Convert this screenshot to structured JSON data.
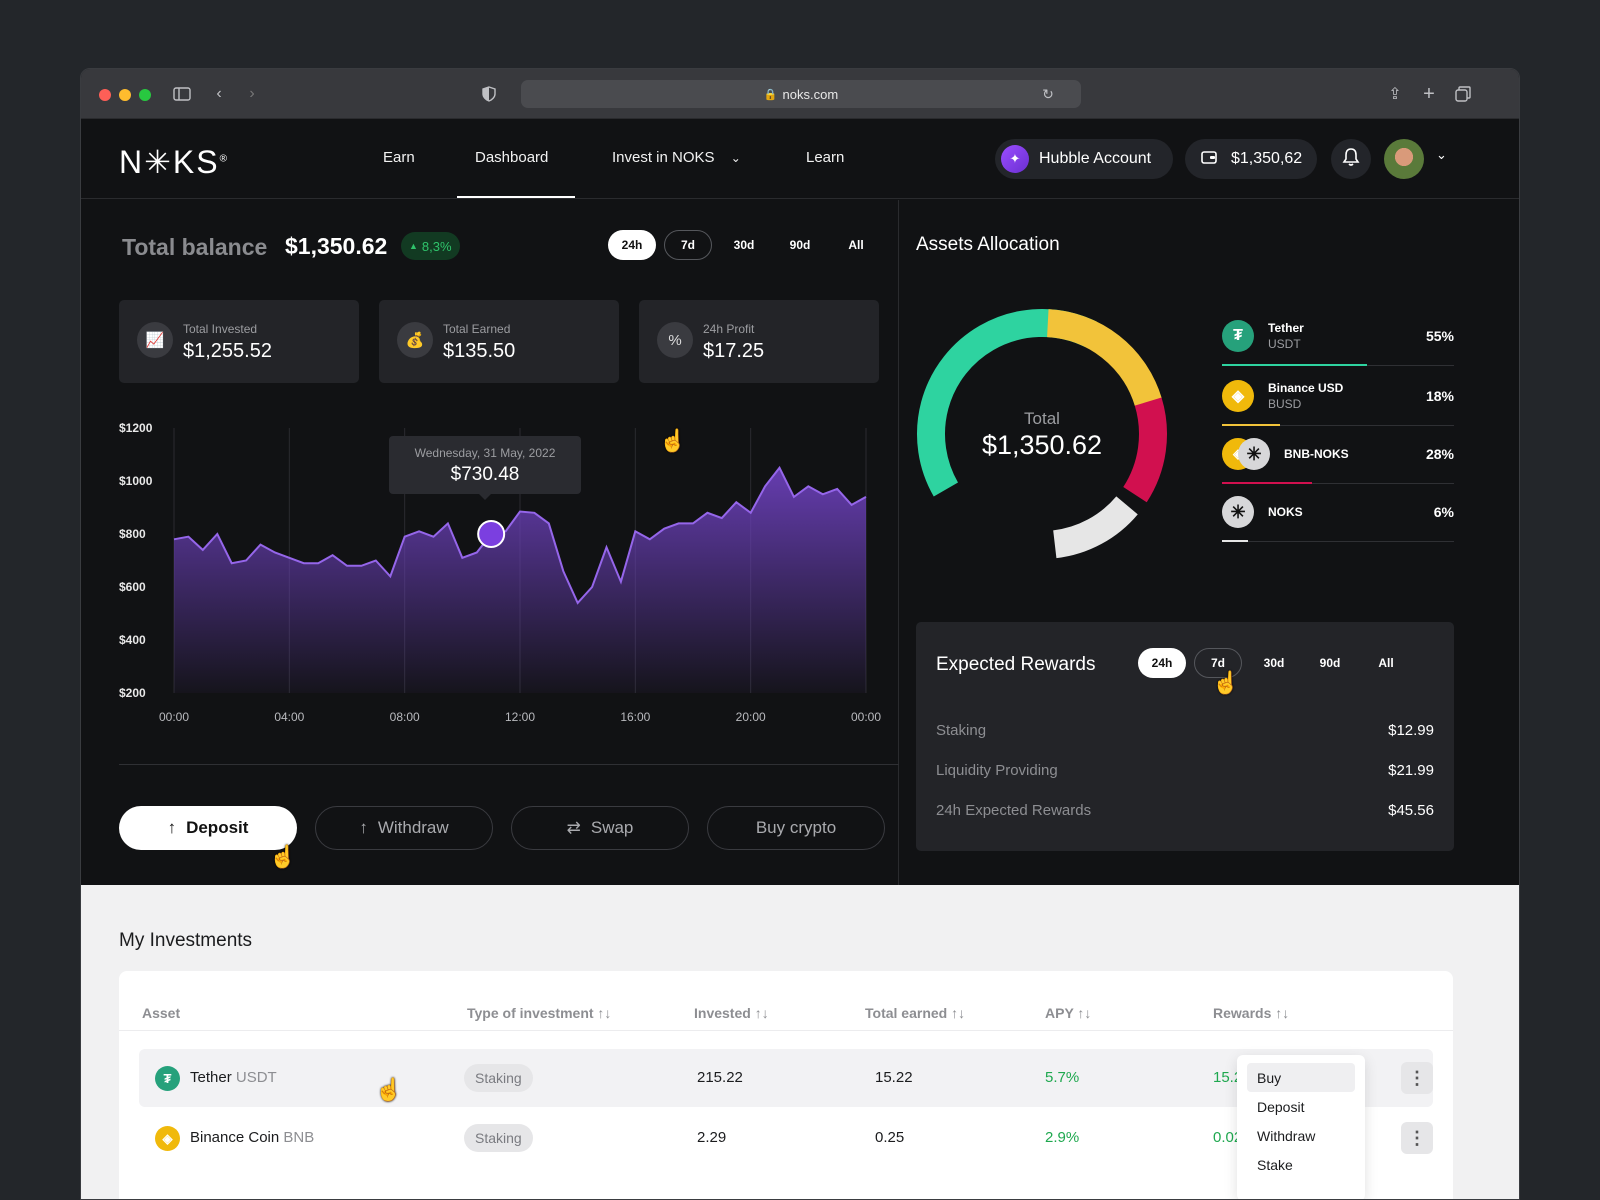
{
  "browser": {
    "url": "noks.com"
  },
  "nav": {
    "logo": "N✳KS",
    "logo_mark": "®",
    "links": [
      "Earn",
      "Dashboard",
      "Invest in NOKS",
      "Learn"
    ],
    "account": "Hubble Account",
    "wallet_balance": "$1,350,62"
  },
  "balance": {
    "title": "Total balance",
    "value": "$1,350.62",
    "change": "8,3%",
    "ranges": [
      "24h",
      "7d",
      "30d",
      "90d",
      "All"
    ],
    "active_range": "24h"
  },
  "stats": [
    {
      "label": "Total Invested",
      "value": "$1,255.52",
      "icon": "chart-up-icon"
    },
    {
      "label": "Total Earned",
      "value": "$135.50",
      "icon": "money-bag-icon"
    },
    {
      "label": "24h Profit",
      "value": "$17.25",
      "icon": "percent-icon"
    }
  ],
  "chart_data": {
    "type": "area",
    "x_ticks": [
      "00:00",
      "04:00",
      "08:00",
      "12:00",
      "16:00",
      "20:00",
      "00:00"
    ],
    "y_ticks": [
      "$1200",
      "$1000",
      "$800",
      "$600",
      "$400",
      "$200"
    ],
    "ylim": [
      200,
      1200
    ],
    "xlim": [
      0,
      24
    ],
    "x": [
      0,
      0.5,
      1,
      1.5,
      2,
      2.5,
      3,
      3.5,
      4,
      4.5,
      5,
      5.5,
      6,
      6.5,
      7,
      7.5,
      8,
      8.5,
      9,
      9.5,
      10,
      10.5,
      11,
      11.5,
      12,
      12.5,
      13,
      13.5,
      14,
      14.5,
      15,
      15.5,
      16,
      16.5,
      17,
      17.5,
      18,
      18.5,
      19,
      19.5,
      20,
      20.5,
      21,
      21.5,
      22,
      22.5,
      23,
      23.5,
      24
    ],
    "values": [
      780,
      790,
      740,
      800,
      690,
      700,
      760,
      730,
      710,
      690,
      690,
      720,
      680,
      680,
      700,
      640,
      790,
      810,
      790,
      840,
      710,
      730,
      800,
      810,
      885,
      880,
      840,
      660,
      540,
      600,
      750,
      620,
      810,
      780,
      820,
      840,
      840,
      880,
      860,
      920,
      880,
      980,
      1050,
      940,
      980,
      950,
      970,
      910,
      940
    ],
    "tooltip": {
      "date": "Wednesday, 31 May, 2022",
      "value": "$730.48"
    }
  },
  "actions": [
    "Deposit",
    "Withdraw",
    "Swap",
    "Buy crypto"
  ],
  "allocation": {
    "title": "Assets Allocation",
    "total_label": "Total",
    "total_value": "$1,350.62",
    "assets": [
      {
        "name": "Tether",
        "symbol": "USDT",
        "percent": "55%",
        "color": "#2ed3a0"
      },
      {
        "name": "Binance USD",
        "symbol": "BUSD",
        "percent": "18%",
        "color": "#f2c33a"
      },
      {
        "name": "BNB-NOKS",
        "symbol": "",
        "percent": "28%",
        "color": "#d1104f"
      },
      {
        "name": "NOKS",
        "symbol": "",
        "percent": "6%",
        "color": "#e8e8e8"
      }
    ]
  },
  "rewards": {
    "title": "Expected Rewards",
    "ranges": [
      "24h",
      "7d",
      "30d",
      "90d",
      "All"
    ],
    "rows": [
      {
        "label": "Staking",
        "value": "$12.99"
      },
      {
        "label": "Liquidity Providing",
        "value": "$21.99"
      },
      {
        "label": "24h Expected Rewards",
        "value": "$45.56"
      }
    ]
  },
  "investments": {
    "title": "My Investments",
    "headers": [
      "Asset",
      "Type of investment ↑↓",
      "Invested ↑↓",
      "Total earned ↑↓",
      "APY ↑↓",
      "Rewards ↑↓"
    ],
    "rows": [
      {
        "asset": "Tether",
        "symbol": "USDT",
        "type": "Staking",
        "invested": "215.22",
        "earned": "15.22",
        "apy": "5.7%",
        "rewards": "15.22"
      },
      {
        "asset": "Binance Coin",
        "symbol": "BNB",
        "type": "Staking",
        "invested": "2.29",
        "earned": "0.25",
        "apy": "2.9%",
        "rewards": "0.025"
      }
    ],
    "menu": [
      "Buy",
      "Deposit",
      "Withdraw",
      "Stake"
    ]
  }
}
